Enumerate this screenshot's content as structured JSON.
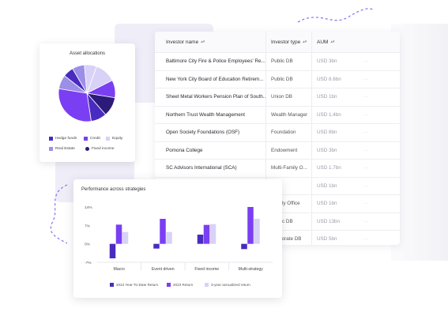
{
  "colors": {
    "deep": "#4a2bbf",
    "primary": "#7a3ff2",
    "light": "#d8d2f7",
    "muted": "#9c8fe8",
    "dark": "#2d1b7a",
    "deco_line": "#8a6cf0"
  },
  "table": {
    "headers": {
      "investor_name": "Investor name",
      "investor_type": "Investor type",
      "aum": "AUM"
    },
    "sort_icon": "sort-icon",
    "rows": [
      {
        "name": "Baltimore City Fire & Police Employees' Re...",
        "type": "Public DB",
        "aum": "USD 3bn",
        "extra": "···"
      },
      {
        "name": "New York City Board of Education Retirem...",
        "type": "Public DB",
        "aum": "USD 8.6bn",
        "extra": "···"
      },
      {
        "name": "Sheet Metal Workers Pension Plan of South...",
        "type": "Union DB",
        "aum": "USD 1bn",
        "extra": "···"
      },
      {
        "name": "Northern Trust Wealth Management",
        "type": "Wealth Manager",
        "aum": "USD 1.4bn",
        "extra": "···"
      },
      {
        "name": "Open Society Foundations (OSF)",
        "type": "Foundation",
        "aum": "USD 8bn",
        "extra": "···"
      },
      {
        "name": "Pomona College",
        "type": "Endowment",
        "aum": "USD 3bn",
        "extra": "···"
      },
      {
        "name": "SC Advisors International (SCA)",
        "type": "Multi-Family O...",
        "aum": "USD 1.7bn",
        "extra": "···"
      },
      {
        "name": "",
        "type": "",
        "aum": "USD 1bn",
        "extra": "···"
      },
      {
        "name": "",
        "type": "Family Office",
        "aum": "USD 1bn",
        "extra": "···"
      },
      {
        "name": "",
        "type": "Public DB",
        "aum": "USD 13bn",
        "extra": "···"
      },
      {
        "name": "",
        "type": "Corporate DB",
        "aum": "USD 5bn",
        "extra": "···"
      }
    ]
  },
  "pie": {
    "title": "Asset allocations",
    "legend": [
      {
        "label": "Hedge funds",
        "color": "#4a2bbf"
      },
      {
        "label": "Credit",
        "color": "#7a3ff2"
      },
      {
        "label": "Equity",
        "color": "#d8d2f7"
      },
      {
        "label": "Real Estate",
        "color": "#9c8fe8"
      },
      {
        "label": "Fixed income",
        "color": "#2d1b7a"
      }
    ]
  },
  "bars": {
    "title": "Performance across strategies",
    "legend": [
      {
        "label": "2024 Year-To-Date Return",
        "color": "#4a2bbf"
      },
      {
        "label": "2023 Return",
        "color": "#7a3ff2"
      },
      {
        "label": "3-year annualized return",
        "color": "#d8d2f7"
      }
    ]
  },
  "chart_data": [
    {
      "type": "pie",
      "title": "Asset allocations",
      "slices": [
        {
          "label": "Equity",
          "value": 12,
          "color": "#d8d2f7"
        },
        {
          "label": "Credit",
          "value": 10,
          "color": "#7a3ff2"
        },
        {
          "label": "Fixed income",
          "value": 11,
          "color": "#2d1b7a"
        },
        {
          "label": "Hedge funds",
          "value": 9,
          "color": "#4a2bbf"
        },
        {
          "label": "Credit",
          "value": 30,
          "color": "#7a3ff2"
        },
        {
          "label": "Real Estate",
          "value": 8,
          "color": "#9c8fe8"
        },
        {
          "label": "Hedge funds",
          "value": 6,
          "color": "#4a2bbf"
        },
        {
          "label": "Real Estate",
          "value": 7,
          "color": "#9c8fe8"
        },
        {
          "label": "Equity",
          "value": 7,
          "color": "#d8d2f7"
        }
      ]
    },
    {
      "type": "bar",
      "title": "Performance across strategies",
      "categories": [
        "Macro",
        "Event driven",
        "Fixed income",
        "Multi-strategy"
      ],
      "yticks": [
        "14%",
        "7%",
        "0%",
        "-7%"
      ],
      "ylim": [
        -7,
        14
      ],
      "series": [
        {
          "name": "2024 Year-To-Date Return",
          "values": [
            -5.5,
            -1.8,
            3.5,
            -2.0
          ],
          "color": "#4a2bbf"
        },
        {
          "name": "2023 Return",
          "values": [
            7.3,
            9.5,
            7.2,
            14.0
          ],
          "color": "#7a3ff2"
        },
        {
          "name": "3-year annualized return",
          "values": [
            4.5,
            4.5,
            7.5,
            9.5
          ],
          "color": "#d8d2f7"
        }
      ]
    }
  ]
}
